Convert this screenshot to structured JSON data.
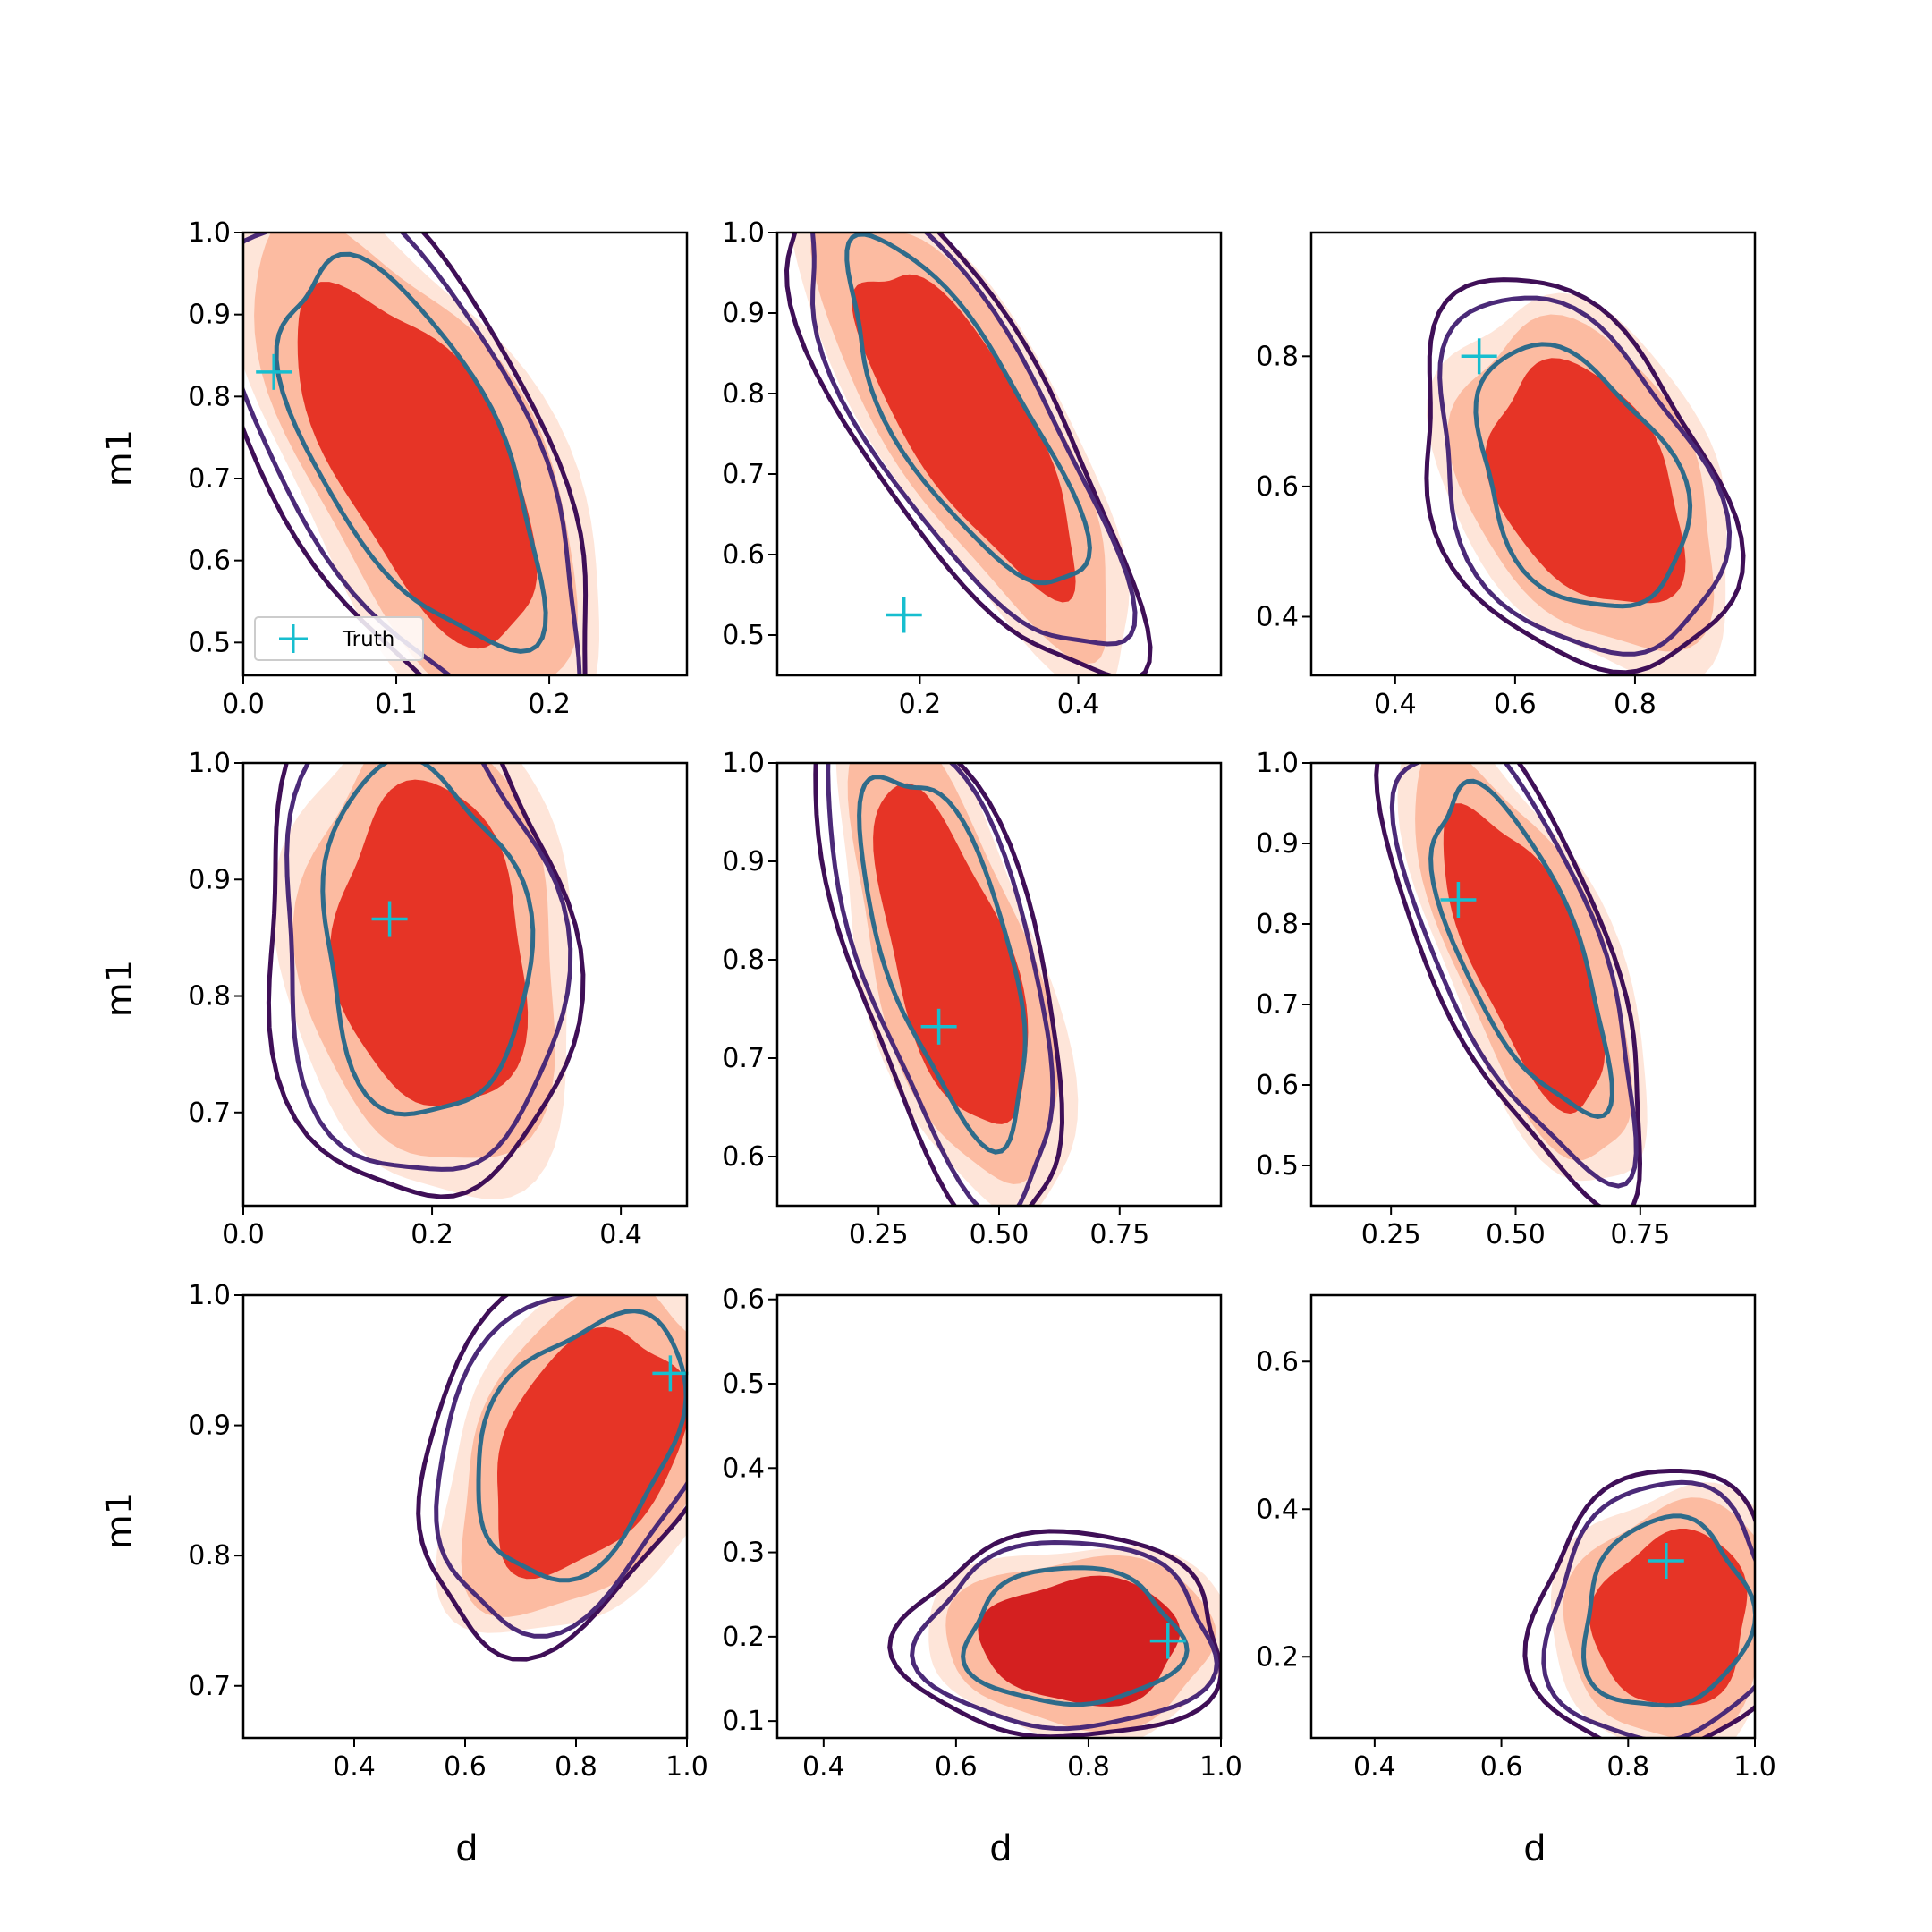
{
  "chart_data": {
    "type": "contour",
    "x_label": "d",
    "y_label": "m1",
    "legend": {
      "entries": [
        "Truth"
      ],
      "placement": "lower-left"
    },
    "colors": {
      "filled_levels": [
        "#fee5d9",
        "#fcbba1",
        "#e63426"
      ],
      "filled_core_deep": "#d42020",
      "contour_outer": "#3f0f57",
      "contour_mid": "#4b2a78",
      "contour_inner": "#2f6b8a",
      "truth_marker": "#17becf"
    },
    "panels": [
      {
        "xlim": [
          0.0,
          0.29
        ],
        "ylim": [
          0.46,
          1.0
        ],
        "xticks": [
          0.0,
          0.1,
          0.2
        ],
        "yticks": [
          0.5,
          0.6,
          0.7,
          0.8,
          0.9,
          1.0
        ],
        "xtick_labels": [
          "0.0",
          "0.1",
          "0.2"
        ],
        "ytick_labels": [
          "0.5",
          "0.6",
          "0.7",
          "0.8",
          "0.9",
          "1.0"
        ],
        "truth": [
          0.02,
          0.83
        ],
        "core": {
          "cx": 0.115,
          "cy": 0.72,
          "rx": 0.055,
          "ry": 0.24,
          "tilt": -0.5
        }
      },
      {
        "xlim": [
          0.02,
          0.58
        ],
        "ylim": [
          0.45,
          1.0
        ],
        "xticks": [
          0.2,
          0.4
        ],
        "yticks": [
          0.5,
          0.6,
          0.7,
          0.8,
          0.9,
          1.0
        ],
        "xtick_labels": [
          "0.2",
          "0.4"
        ],
        "ytick_labels": [
          "0.5",
          "0.6",
          "0.7",
          "0.8",
          "0.9",
          "1.0"
        ],
        "truth": [
          0.18,
          0.525
        ],
        "core": {
          "cx": 0.26,
          "cy": 0.76,
          "rx": 0.075,
          "ry": 0.23,
          "tilt": -0.55
        }
      },
      {
        "xlim": [
          0.26,
          1.0
        ],
        "ylim": [
          0.31,
          0.99
        ],
        "xticks": [
          0.4,
          0.6,
          0.8
        ],
        "yticks": [
          0.4,
          0.6,
          0.8
        ],
        "xtick_labels": [
          "0.4",
          "0.6",
          "0.8"
        ],
        "ytick_labels": [
          "0.4",
          "0.6",
          "0.8"
        ],
        "truth": [
          0.54,
          0.8
        ],
        "core": {
          "cx": 0.72,
          "cy": 0.6,
          "rx": 0.14,
          "ry": 0.2,
          "tilt": -0.5
        }
      },
      {
        "xlim": [
          0.0,
          0.47
        ],
        "ylim": [
          0.62,
          1.0
        ],
        "xticks": [
          0.0,
          0.2,
          0.4
        ],
        "yticks": [
          0.7,
          0.8,
          0.9,
          1.0
        ],
        "xtick_labels": [
          "0.0",
          "0.2",
          "0.4"
        ],
        "ytick_labels": [
          "0.7",
          "0.8",
          "0.9",
          "1.0"
        ],
        "truth": [
          0.155,
          0.866
        ],
        "core": {
          "cx": 0.2,
          "cy": 0.84,
          "rx": 0.1,
          "ry": 0.14,
          "tilt": -0.1
        }
      },
      {
        "xlim": [
          0.04,
          0.96
        ],
        "ylim": [
          0.55,
          1.0
        ],
        "xticks": [
          0.25,
          0.5,
          0.75
        ],
        "yticks": [
          0.6,
          0.7,
          0.8,
          0.9,
          1.0
        ],
        "xtick_labels": [
          "0.25",
          "0.50",
          "0.75"
        ],
        "ytick_labels": [
          "0.6",
          "0.7",
          "0.8",
          "0.9",
          "1.0"
        ],
        "truth": [
          0.375,
          0.732
        ],
        "core": {
          "cx": 0.4,
          "cy": 0.8,
          "rx": 0.12,
          "ry": 0.18,
          "tilt": -0.3
        }
      },
      {
        "xlim": [
          0.09,
          0.98
        ],
        "ylim": [
          0.45,
          1.0
        ],
        "xticks": [
          0.25,
          0.5,
          0.75
        ],
        "yticks": [
          0.5,
          0.6,
          0.7,
          0.8,
          0.9,
          1.0
        ],
        "xtick_labels": [
          "0.25",
          "0.50",
          "0.75"
        ],
        "ytick_labels": [
          "0.5",
          "0.6",
          "0.7",
          "0.8",
          "0.9",
          "1.0"
        ],
        "truth": [
          0.385,
          0.83
        ],
        "core": {
          "cx": 0.52,
          "cy": 0.76,
          "rx": 0.11,
          "ry": 0.2,
          "tilt": -0.4
        }
      },
      {
        "xlim": [
          0.2,
          1.0
        ],
        "ylim": [
          0.66,
          1.0
        ],
        "xticks": [
          0.4,
          0.6,
          0.8,
          1.0
        ],
        "yticks": [
          0.7,
          0.8,
          0.9,
          1.0
        ],
        "xtick_labels": [
          "0.4",
          "0.6",
          "0.8",
          "1.0"
        ],
        "ytick_labels": [
          "0.7",
          "0.8",
          "0.9",
          "1.0"
        ],
        "truth": [
          0.97,
          0.94
        ],
        "core": {
          "cx": 0.82,
          "cy": 0.88,
          "rx": 0.15,
          "ry": 0.1,
          "tilt": 0.5
        }
      },
      {
        "xlim": [
          0.33,
          1.0
        ],
        "ylim": [
          0.08,
          0.605
        ],
        "xticks": [
          0.4,
          0.6,
          0.8,
          1.0
        ],
        "yticks": [
          0.1,
          0.2,
          0.3,
          0.4,
          0.5,
          0.6
        ],
        "xtick_labels": [
          "0.4",
          "0.6",
          "0.8",
          "1.0"
        ],
        "ytick_labels": [
          "0.1",
          "0.2",
          "0.3",
          "0.4",
          "0.5",
          "0.6"
        ],
        "truth": [
          0.92,
          0.195
        ],
        "core": {
          "cx": 0.79,
          "cy": 0.195,
          "rx": 0.15,
          "ry": 0.075,
          "tilt": 0.0
        }
      },
      {
        "xlim": [
          0.3,
          1.0
        ],
        "ylim": [
          0.09,
          0.69
        ],
        "xticks": [
          0.4,
          0.6,
          0.8,
          1.0
        ],
        "yticks": [
          0.2,
          0.4,
          0.6
        ],
        "xtick_labels": [
          "0.4",
          "0.6",
          "0.8",
          "1.0"
        ],
        "ytick_labels": [
          "0.2",
          "0.4",
          "0.6"
        ],
        "truth": [
          0.86,
          0.33
        ],
        "core": {
          "cx": 0.87,
          "cy": 0.25,
          "rx": 0.12,
          "ry": 0.12,
          "tilt": 0.3
        }
      }
    ]
  }
}
